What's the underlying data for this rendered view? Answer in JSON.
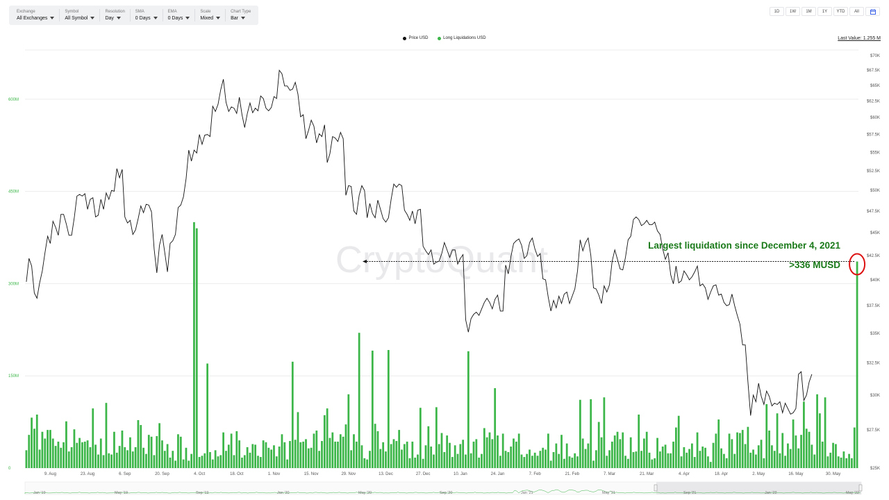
{
  "toolbar": {
    "exchange": {
      "label": "Exchange",
      "value": "All Exchanges"
    },
    "symbol": {
      "label": "Symbol",
      "value": "All Symbol"
    },
    "resolution": {
      "label": "Resolution",
      "value": "Day"
    },
    "sma": {
      "label": "SMA",
      "value": "0 Days"
    },
    "ema": {
      "label": "EMA",
      "value": "0 Days"
    },
    "scale": {
      "label": "Scale",
      "value": "Mixed"
    },
    "chart_type": {
      "label": "Chart Type",
      "value": "Bar"
    }
  },
  "ranges": [
    "1D",
    "1W",
    "1M",
    "1Y",
    "YTD",
    "All"
  ],
  "calendar_icon": "calendar-icon",
  "last_value": "Last Value: 1.255 M",
  "watermark": "CryptoQuant",
  "annotation": {
    "headline": "Largest liquidation since December 4, 2021",
    "value": ">336 MUSD"
  },
  "navigator": {
    "labels": [
      "Jan '19",
      "May '19",
      "Sep '19",
      "Jan '20",
      "May '20",
      "Sep '20",
      "Jan '21",
      "May '21",
      "Sep '21",
      "Jan '22",
      "May '22"
    ]
  },
  "colors": {
    "liquidation_bar": "#3db649",
    "price_line": "#111111",
    "annotation_text": "#1a7a1a",
    "highlight_circle": "#dd1111"
  },
  "chart_data": {
    "type": "bar",
    "legend": [
      "Price USD",
      "Long Liquidations USD"
    ],
    "legend_colors": [
      "#111111",
      "#3db649"
    ],
    "x_start": "2021-07-31",
    "x_end": "2022-06-01",
    "x_ticks": [
      "9. Aug",
      "23. Aug",
      "6. Sep",
      "20. Sep",
      "4. Oct",
      "18. Oct",
      "1. Nov",
      "15. Nov",
      "29. Nov",
      "13. Dec",
      "27. Dec",
      "10. Jan",
      "24. Jan",
      "7. Feb",
      "21. Feb",
      "7. Mar",
      "21. Mar",
      "4. Apr",
      "18. Apr",
      "2. May",
      "16. May",
      "30. May"
    ],
    "y_left_ticks": [
      "0",
      "150M",
      "300M",
      "450M",
      "600M"
    ],
    "y_left_range": [
      0,
      680000000
    ],
    "y_right_ticks": [
      "$25K",
      "$27.5K",
      "$30K",
      "$32.5K",
      "$35K",
      "$37.5K",
      "$40K",
      "$42.5K",
      "$45K",
      "$47.5K",
      "$50K",
      "$52.5K",
      "$55K",
      "$57.5K",
      "$60K",
      "$62.5K",
      "$65K",
      "$67.5K",
      "$70K"
    ],
    "y_right_range": [
      25000,
      71000
    ],
    "y_right_scale": "log",
    "liquidations_musd": [
      29,
      54,
      82,
      64,
      87,
      30,
      59,
      48,
      62,
      62,
      48,
      36,
      43,
      33,
      42,
      76,
      27,
      34,
      63,
      41,
      49,
      42,
      43,
      45,
      34,
      97,
      38,
      22,
      48,
      21,
      106,
      24,
      22,
      59,
      25,
      36,
      61,
      34,
      29,
      50,
      27,
      34,
      78,
      70,
      33,
      23,
      54,
      51,
      21,
      52,
      73,
      45,
      28,
      39,
      17,
      28,
      12,
      55,
      51,
      14,
      33,
      12,
      23,
      400,
      390,
      18,
      20,
      24,
      170,
      26,
      14,
      29,
      19,
      21,
      58,
      28,
      38,
      56,
      21,
      60,
      45,
      17,
      21,
      34,
      25,
      39,
      38,
      20,
      18,
      45,
      42,
      33,
      30,
      37,
      19,
      35,
      55,
      42,
      14,
      44,
      173,
      46,
      91,
      42,
      43,
      47,
      32,
      33,
      56,
      61,
      28,
      44,
      86,
      97,
      49,
      58,
      43,
      43,
      55,
      51,
      71,
      120,
      29,
      55,
      43,
      220,
      37,
      16,
      14,
      28,
      191,
      72,
      60,
      31,
      42,
      27,
      192,
      39,
      47,
      44,
      62,
      30,
      39,
      43,
      16,
      43,
      17,
      22,
      98,
      15,
      37,
      68,
      35,
      22,
      99,
      39,
      57,
      26,
      53,
      41,
      18,
      37,
      23,
      39,
      46,
      22,
      190,
      24,
      43,
      47,
      17,
      23,
      65,
      50,
      58,
      47,
      130,
      53,
      20,
      56,
      28,
      26,
      35,
      48,
      43,
      56,
      22,
      18,
      23,
      30,
      20,
      25,
      20,
      28,
      33,
      30,
      56,
      12,
      26,
      40,
      23,
      54,
      15,
      40,
      19,
      17,
      24,
      19,
      111,
      48,
      31,
      40,
      112,
      12,
      29,
      75,
      50,
      115,
      20,
      29,
      43,
      53,
      59,
      47,
      58,
      20,
      15,
      50,
      26,
      27,
      87,
      28,
      48,
      59,
      25,
      14,
      16,
      49,
      27,
      35,
      38,
      24,
      24,
      43,
      66,
      85,
      19,
      34,
      25,
      31,
      40,
      18,
      58,
      28,
      35,
      33,
      19,
      10,
      41,
      56,
      79,
      32,
      23,
      16,
      56,
      47,
      23,
      58,
      57,
      62,
      39,
      67,
      25,
      30,
      22,
      37,
      46,
      16,
      104,
      61,
      37,
      28,
      89,
      24,
      57,
      20,
      40,
      31,
      79,
      53,
      32,
      54,
      108,
      64,
      59,
      38,
      22,
      120,
      89,
      43,
      115,
      19,
      25,
      41,
      39,
      19,
      17,
      27,
      16,
      23,
      16,
      66,
      336
    ],
    "price_usd_k": [
      39.8,
      42.2,
      41.4,
      38.7,
      38.2,
      39.7,
      40.9,
      42.8,
      44.6,
      43.8,
      46.3,
      45.6,
      44.7,
      47.1,
      47.1,
      46.0,
      44.7,
      44.7,
      46.7,
      49.3,
      49.5,
      49.3,
      49.6,
      47.7,
      48.9,
      49.1,
      46.8,
      47.0,
      48.9,
      47.7,
      49.7,
      48.9,
      50.0,
      49.9,
      52.8,
      51.6,
      52.7,
      46.8,
      46.1,
      46.4,
      44.8,
      45.3,
      46.6,
      48.1,
      47.3,
      48.3,
      48.2,
      47.4,
      43.2,
      40.7,
      43.6,
      44.8,
      42.8,
      40.8,
      43.8,
      44.1,
      44.8,
      47.9,
      48.2,
      49.2,
      51.5,
      55.3,
      53.8,
      55.3,
      54.9,
      57.5,
      56.1,
      57.4,
      57.5,
      57.2,
      61.7,
      60.9,
      62.0,
      64.3,
      66.0,
      62.3,
      60.9,
      61.6,
      61.4,
      60.6,
      63.1,
      60.4,
      58.5,
      60.6,
      62.2,
      60.7,
      61.4,
      61.0,
      63.3,
      62.9,
      61.4,
      61.0,
      61.5,
      63.2,
      62.9,
      67.5,
      66.9,
      64.9,
      64.9,
      64.2,
      64.4,
      65.5,
      63.6,
      60.1,
      60.4,
      56.9,
      58.1,
      59.6,
      58.7,
      56.3,
      57.6,
      57.2,
      58.9,
      53.6,
      54.8,
      57.2,
      57.0,
      56.5,
      57.8,
      56.9,
      49.4,
      50.6,
      50.5,
      47.5,
      47.1,
      49.4,
      50.6,
      50.0,
      46.7,
      48.4,
      47.2,
      46.7,
      48.8,
      47.7,
      46.6,
      46.2,
      46.7,
      48.9,
      50.8,
      50.4,
      50.8,
      50.6,
      47.6,
      47.1,
      46.4,
      47.5,
      46.0,
      47.6,
      47.7,
      43.5,
      43.0,
      42.6,
      43.1,
      41.6,
      41.8,
      41.9,
      42.7,
      43.9,
      43.1,
      42.3,
      43.1,
      43.1,
      41.6,
      42.2,
      42.6,
      36.2,
      35.1,
      36.3,
      36.7,
      36.9,
      36.6,
      37.2,
      37.8,
      38.2,
      37.8,
      37.2,
      38.1,
      38.5,
      37.0,
      37.0,
      41.5,
      40.6,
      42.4,
      43.8,
      44.1,
      44.3,
      43.6,
      42.2,
      42.5,
      43.9,
      44.4,
      43.2,
      42.4,
      42.7,
      40.1,
      40.0,
      38.3,
      37.0,
      38.0,
      37.3,
      38.4,
      37.7,
      38.6,
      38.8,
      37.7,
      38.4,
      39.1,
      40.9,
      44.2,
      43.0,
      43.9,
      44.4,
      42.5,
      39.2,
      39.1,
      38.5,
      37.7,
      39.4,
      38.8,
      39.5,
      41.9,
      43.1,
      42.1,
      41.1,
      41.0,
      42.3,
      44.2,
      44.6,
      46.5,
      46.8,
      46.5,
      45.8,
      46.0,
      46.4,
      45.9,
      45.9,
      46.2,
      45.2,
      44.8,
      43.2,
      42.1,
      42.8,
      40.5,
      39.6,
      41.4,
      39.7,
      39.9,
      40.9,
      40.5,
      40.0,
      40.3,
      40.8,
      41.4,
      39.4,
      39.6,
      39.2,
      38.1,
      38.8,
      39.4,
      39.5,
      38.5,
      38.6,
      37.8,
      37.5,
      37.6,
      38.6,
      37.5,
      36.6,
      35.8,
      34.0,
      34.0,
      31.0,
      28.5,
      30.0,
      29.5,
      30.9,
      29.9,
      29.3,
      30.3,
      29.9,
      29.2,
      29.4,
      29.3,
      29.5,
      28.7,
      29.4,
      29.0,
      28.6,
      28.7,
      29.0,
      31.6,
      31.8,
      29.6,
      30.0,
      31.0,
      31.6
    ]
  }
}
